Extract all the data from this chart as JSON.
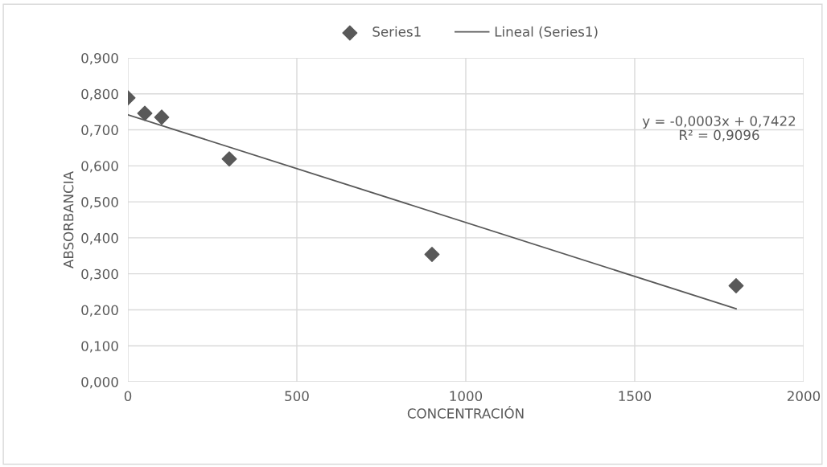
{
  "chart_data": {
    "type": "scatter",
    "xlabel": "CONCENTRACIÓN",
    "ylabel": "ABSORBANCIA",
    "series": [
      {
        "name": "Series1",
        "color": "#595959",
        "marker": "diamond",
        "x": [
          0,
          50,
          100,
          300,
          900,
          1800
        ],
        "values": [
          0.789,
          0.746,
          0.735,
          0.619,
          0.354,
          0.267
        ]
      },
      {
        "name": "Lineal (Series1)",
        "type": "line",
        "color": "#595959",
        "marker": "none",
        "line_style": "solid",
        "x": [
          0,
          1800
        ],
        "values": [
          0.742,
          0.203
        ]
      }
    ],
    "xlim": [
      0,
      2000
    ],
    "xticks": [
      0,
      500,
      1000,
      1500,
      2000
    ],
    "ylim": [
      0,
      0.9
    ],
    "yticks": [
      {
        "value": 0,
        "label": "0,000"
      },
      {
        "value": 0.1,
        "label": "0,100"
      },
      {
        "value": 0.2,
        "label": "0,200"
      },
      {
        "value": 0.3,
        "label": "0,300"
      },
      {
        "value": 0.4,
        "label": "0,400"
      },
      {
        "value": 0.5,
        "label": "0,500"
      },
      {
        "value": 0.6,
        "label": "0,600"
      },
      {
        "value": 0.7,
        "label": "0,700"
      },
      {
        "value": 0.8,
        "label": "0,800"
      },
      {
        "value": 0.9,
        "label": "0,900"
      }
    ],
    "annotations": [
      "y = -0,0003x + 0,7422\nR² = 0,9096"
    ],
    "grid": true,
    "legend": "top"
  }
}
